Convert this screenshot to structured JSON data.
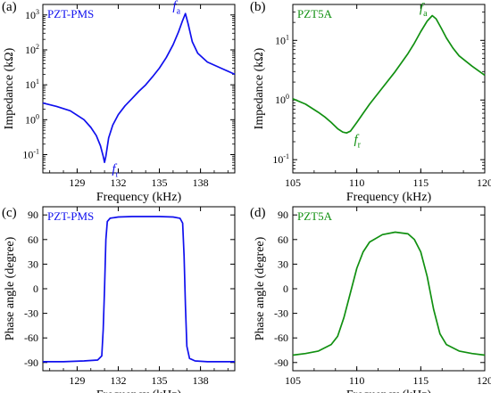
{
  "chart_data": [
    {
      "panel": "(a)",
      "type": "line",
      "sample": "PZT-PMS",
      "color": "#1010ee",
      "xlabel": "Frequency (kHz)",
      "ylabel": "Impedance (kΩ)",
      "xlim": [
        126.5,
        140.5
      ],
      "xticks": [
        129,
        132,
        135,
        138
      ],
      "yscale": "log",
      "ylim": [
        0.03,
        2000
      ],
      "yticks": [
        {
          "v": 0.1,
          "b": "10",
          "e": "-1"
        },
        {
          "v": 1,
          "b": "10",
          "e": "0"
        },
        {
          "v": 10,
          "b": "10",
          "e": "1"
        },
        {
          "v": 100,
          "b": "10",
          "e": "2"
        },
        {
          "v": 1000,
          "b": "10",
          "e": "3"
        }
      ],
      "annotations": [
        {
          "b": "f",
          "s": "r",
          "at": [
            131.0,
            0.06
          ]
        },
        {
          "b": "f",
          "s": "a",
          "at": [
            136.9,
            1100
          ]
        }
      ],
      "x": [
        126.5,
        127.5,
        128.5,
        129.5,
        130.0,
        130.4,
        130.7,
        130.9,
        131.0,
        131.1,
        131.3,
        131.6,
        132.0,
        132.5,
        133.0,
        133.5,
        134.0,
        134.5,
        135.0,
        135.5,
        136.0,
        136.4,
        136.7,
        136.9,
        137.1,
        137.4,
        137.8,
        138.5,
        139.5,
        140.5
      ],
      "y": [
        3,
        2.4,
        1.8,
        1.0,
        0.6,
        0.35,
        0.18,
        0.09,
        0.06,
        0.09,
        0.3,
        0.7,
        1.4,
        2.5,
        4,
        6.5,
        10,
        17,
        30,
        60,
        140,
        330,
        700,
        1100,
        550,
        170,
        80,
        45,
        30,
        20
      ]
    },
    {
      "panel": "(b)",
      "type": "line",
      "sample": "PZT5A",
      "color": "#119011",
      "xlabel": "Frequency (kHz)",
      "ylabel": "Impedance (kΩ)",
      "xlim": [
        105,
        120
      ],
      "xticks": [
        105,
        110,
        115,
        120
      ],
      "yscale": "log",
      "ylim": [
        0.06,
        40
      ],
      "yticks": [
        {
          "v": 0.1,
          "b": "10",
          "e": "-1"
        },
        {
          "v": 1,
          "b": "10",
          "e": "0"
        },
        {
          "v": 10,
          "b": "10",
          "e": "1"
        }
      ],
      "annotations": [
        {
          "b": "f",
          "s": "r",
          "at": [
            109.2,
            0.28
          ]
        },
        {
          "b": "f",
          "s": "a",
          "at": [
            115.9,
            26
          ]
        }
      ],
      "x": [
        105,
        106,
        107,
        107.5,
        108,
        108.5,
        108.9,
        109.2,
        109.5,
        110,
        110.5,
        111,
        112,
        113,
        114,
        114.5,
        115,
        115.5,
        115.9,
        116.2,
        116.6,
        117,
        117.5,
        118,
        119,
        120
      ],
      "y": [
        1.05,
        0.85,
        0.62,
        0.52,
        0.42,
        0.33,
        0.29,
        0.28,
        0.3,
        0.42,
        0.6,
        0.85,
        1.6,
        3.0,
        6.0,
        9.0,
        14,
        21,
        26,
        23,
        16,
        11,
        7.5,
        5.5,
        3.7,
        2.6
      ]
    },
    {
      "panel": "(c)",
      "type": "line",
      "sample": "PZT-PMS",
      "color": "#1010ee",
      "xlabel": "Frequency (kHz)",
      "ylabel": "Phase angle (degree)",
      "xlim": [
        126.5,
        140.5
      ],
      "xticks": [
        129,
        132,
        135,
        138
      ],
      "yscale": "linear",
      "ylim": [
        -100,
        100
      ],
      "yticks": [
        {
          "v": -90,
          "t": "-90"
        },
        {
          "v": -60,
          "t": "-60"
        },
        {
          "v": -30,
          "t": "-30"
        },
        {
          "v": 0,
          "t": "0"
        },
        {
          "v": 30,
          "t": "30"
        },
        {
          "v": 60,
          "t": "60"
        },
        {
          "v": 90,
          "t": "90"
        }
      ],
      "x": [
        126.5,
        128,
        129.5,
        130.5,
        130.8,
        130.9,
        131.0,
        131.1,
        131.2,
        131.4,
        132,
        133,
        134,
        135,
        136,
        136.5,
        136.7,
        136.8,
        136.9,
        137.0,
        137.2,
        137.6,
        138.5,
        140.5
      ],
      "y": [
        -89,
        -89,
        -88,
        -87,
        -82,
        -50,
        0,
        60,
        82,
        86,
        87.5,
        88,
        88,
        88,
        87.5,
        86,
        80,
        40,
        -20,
        -70,
        -85,
        -88,
        -89,
        -89
      ]
    },
    {
      "panel": "(d)",
      "type": "line",
      "sample": "PZT5A",
      "color": "#119011",
      "xlabel": "Frequency (kHz)",
      "ylabel": "Phase angle (degree)",
      "xlim": [
        105,
        120
      ],
      "xticks": [
        105,
        110,
        115,
        120
      ],
      "yscale": "linear",
      "ylim": [
        -100,
        100
      ],
      "yticks": [
        {
          "v": -90,
          "t": "-90"
        },
        {
          "v": -60,
          "t": "-60"
        },
        {
          "v": -30,
          "t": "-30"
        },
        {
          "v": 0,
          "t": "0"
        },
        {
          "v": 30,
          "t": "30"
        },
        {
          "v": 60,
          "t": "60"
        },
        {
          "v": 90,
          "t": "90"
        }
      ],
      "x": [
        105,
        106,
        107,
        108,
        108.5,
        109,
        109.5,
        110,
        110.5,
        111,
        112,
        113,
        114,
        114.5,
        115,
        115.5,
        116,
        116.5,
        117,
        118,
        119,
        120
      ],
      "y": [
        -81,
        -79,
        -76,
        -68,
        -58,
        -35,
        -5,
        25,
        45,
        57,
        66,
        69,
        67,
        60,
        45,
        15,
        -25,
        -55,
        -68,
        -76,
        -79,
        -81
      ]
    }
  ]
}
